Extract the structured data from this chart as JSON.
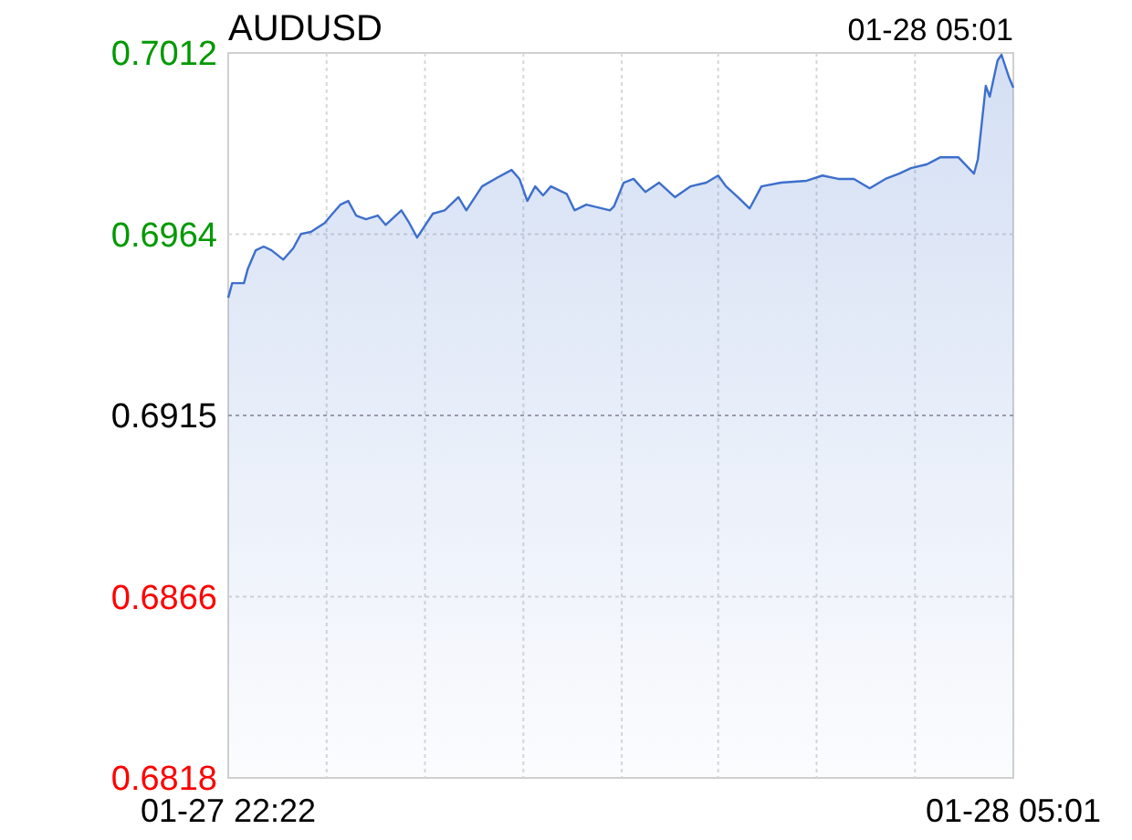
{
  "chart_data": {
    "type": "area",
    "title": "AUDUSD",
    "subtitle": "01-28 05:01",
    "x": [
      "--01-27T22:22",
      "--01-27T22:24",
      "--01-27T22:30",
      "--01-27T22:32",
      "--01-27T22:36",
      "--01-27T22:40",
      "--01-27T22:44",
      "--01-27T22:50",
      "--01-27T22:55",
      "--01-27T22:59",
      "--01-27T23:04",
      "--01-27T23:11",
      "--01-27T23:15",
      "--01-27T23:19",
      "--01-27T23:23",
      "--01-27T23:27",
      "--01-27T23:32",
      "--01-27T23:38",
      "--01-27T23:42",
      "--01-27T23:50",
      "--01-27T23:54",
      "--01-27T23:58",
      "--01-28T00:06",
      "--01-28T00:12",
      "--01-28T00:19",
      "--01-28T00:23",
      "--01-28T00:31",
      "--01-28T00:39",
      "--01-28T00:46",
      "--01-28T00:50",
      "--01-28T00:54",
      "--01-28T00:58",
      "--01-28T01:02",
      "--01-28T01:06",
      "--01-28T01:14",
      "--01-28T01:18",
      "--01-28T01:24",
      "--01-28T01:36",
      "--01-28T01:38",
      "--01-28T01:43",
      "--01-28T01:48",
      "--01-28T01:54",
      "--01-28T02:01",
      "--01-28T02:09",
      "--01-28T02:17",
      "--01-28T02:25",
      "--01-28T02:31",
      "--01-28T02:35",
      "--01-28T02:41",
      "--01-28T02:47",
      "--01-28T02:53",
      "--01-28T03:03",
      "--01-28T03:16",
      "--01-28T03:24",
      "--01-28T03:32",
      "--01-28T03:40",
      "--01-28T03:48",
      "--01-28T03:56",
      "--01-28T04:03",
      "--01-28T04:09",
      "--01-28T04:17",
      "--01-28T04:24",
      "--01-28T04:33",
      "--01-28T04:41",
      "--01-28T04:43",
      "--01-28T04:47",
      "--01-28T04:49",
      "--01-28T04:53",
      "--01-28T04:55",
      "--01-28T04:59",
      "--01-28T05:01"
    ],
    "series": [
      {
        "color": "#3d6fcc",
        "values": [
          0.69465,
          0.69504,
          0.69504,
          0.69543,
          0.69592,
          0.69602,
          0.69592,
          0.69567,
          0.69597,
          0.69636,
          0.69641,
          0.69665,
          0.6969,
          0.69714,
          0.69724,
          0.69685,
          0.69675,
          0.69685,
          0.6966,
          0.69699,
          0.69665,
          0.69626,
          0.6969,
          0.69699,
          0.69734,
          0.69699,
          0.69763,
          0.69787,
          0.69807,
          0.69783,
          0.69724,
          0.69763,
          0.69739,
          0.69763,
          0.69743,
          0.69699,
          0.69714,
          0.69699,
          0.69709,
          0.69773,
          0.69783,
          0.69748,
          0.69773,
          0.69734,
          0.69763,
          0.69773,
          0.69792,
          0.69763,
          0.69734,
          0.69704,
          0.69763,
          0.69773,
          0.69778,
          0.69792,
          0.69783,
          0.69783,
          0.69758,
          0.69783,
          0.69797,
          0.69812,
          0.69822,
          0.69841,
          0.69841,
          0.69797,
          0.69836,
          0.70032,
          0.70003,
          0.701,
          0.70115,
          0.70052,
          0.70027
        ]
      }
    ],
    "xlim": [
      "--01-27T22:22",
      "--01-28T05:01"
    ],
    "xticks": [
      {
        "value": "--01-27T22:22",
        "label": "01-27 22:22"
      },
      {
        "value": "--01-27T23:12",
        "label": null
      },
      {
        "value": "--01-28T00:02",
        "label": null
      },
      {
        "value": "--01-28T00:52",
        "label": null
      },
      {
        "value": "--01-28T01:42",
        "label": null
      },
      {
        "value": "--01-28T02:31",
        "label": null
      },
      {
        "value": "--01-28T03:21",
        "label": null
      },
      {
        "value": "--01-28T04:11",
        "label": null
      },
      {
        "value": "--01-28T05:01",
        "label": "01-28 05:01"
      }
    ],
    "ylim": [
      0.6818,
      0.7012
    ],
    "yticks": [
      0.7012,
      {
        "value": 0.69635,
        "label": "0.6964"
      },
      0.6915,
      {
        "value": 0.68665,
        "label": "0.6866"
      },
      0.6818
    ],
    "ref_lines": [
      {
        "axis": "y",
        "value": 0.6915,
        "color": "#9a9aaa",
        "line_style": "dotted"
      }
    ],
    "grid": true
  }
}
